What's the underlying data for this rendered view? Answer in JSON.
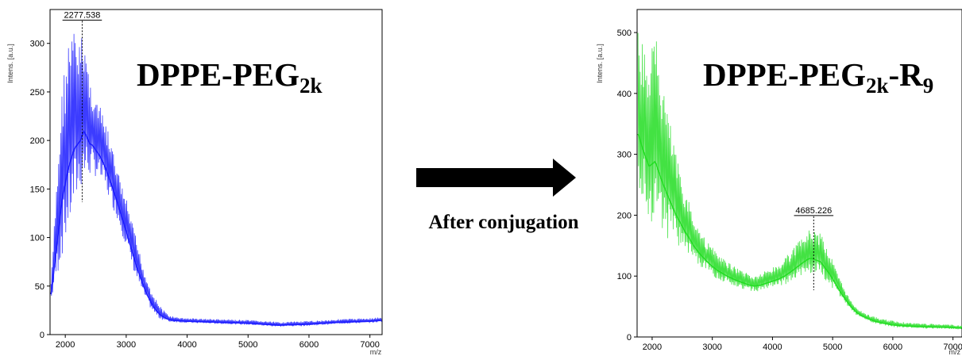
{
  "chart_data": [
    {
      "type": "line",
      "title_main": "DPPE-PEG",
      "title_sub": "2k",
      "title_suffix": "",
      "title_suffix_sub": "",
      "ylabel": "Intens. [a.u.]",
      "xlabel": "m/z",
      "xlim": [
        1750,
        7200
      ],
      "ylim": [
        0,
        330
      ],
      "xticks": [
        2000,
        3000,
        4000,
        5000,
        6000,
        7000
      ],
      "yticks": [
        0,
        50,
        100,
        150,
        200,
        250,
        300
      ],
      "peak_label": "2277.538",
      "peak_x": 2277.538,
      "peak_y": 315,
      "color": "#1a1aff",
      "grid": false,
      "series": [
        {
          "upper": [
            [
              1770,
              55
            ],
            [
              1850,
              150
            ],
            [
              1950,
              260
            ],
            [
              2050,
              305
            ],
            [
              2150,
              315
            ],
            [
              2250,
              300
            ],
            [
              2300,
              320
            ],
            [
              2400,
              265
            ],
            [
              2500,
              245
            ],
            [
              2600,
              230
            ],
            [
              2700,
              210
            ],
            [
              2800,
              185
            ],
            [
              2900,
              160
            ],
            [
              3000,
              140
            ],
            [
              3100,
              115
            ],
            [
              3200,
              90
            ],
            [
              3300,
              65
            ],
            [
              3400,
              48
            ],
            [
              3500,
              35
            ],
            [
              3600,
              26
            ],
            [
              3700,
              20
            ],
            [
              3800,
              18
            ],
            [
              4000,
              17
            ],
            [
              4500,
              16
            ],
            [
              5000,
              15
            ],
            [
              5500,
              13
            ],
            [
              6000,
              14
            ],
            [
              6500,
              16
            ],
            [
              7000,
              17
            ],
            [
              7200,
              18
            ]
          ],
          "lower": [
            [
              1770,
              35
            ],
            [
              1850,
              55
            ],
            [
              1950,
              80
            ],
            [
              2050,
              105
            ],
            [
              2150,
              130
            ],
            [
              2250,
              150
            ],
            [
              2350,
              160
            ],
            [
              2450,
              165
            ],
            [
              2550,
              160
            ],
            [
              2650,
              150
            ],
            [
              2750,
              135
            ],
            [
              2850,
              120
            ],
            [
              2950,
              100
            ],
            [
              3050,
              80
            ],
            [
              3150,
              60
            ],
            [
              3250,
              45
            ],
            [
              3350,
              32
            ],
            [
              3450,
              22
            ],
            [
              3550,
              16
            ],
            [
              3700,
              13
            ],
            [
              4000,
              12
            ],
            [
              4500,
              11
            ],
            [
              5000,
              10
            ],
            [
              5500,
              8
            ],
            [
              6000,
              9
            ],
            [
              6500,
              11
            ],
            [
              7000,
              12
            ],
            [
              7200,
              13
            ]
          ]
        }
      ]
    },
    {
      "type": "line",
      "title_main": "DPPE-PEG",
      "title_sub": "2k",
      "title_suffix": "-R",
      "title_suffix_sub": "9",
      "ylabel": "Intens. [a.u.]",
      "xlabel": "m/z",
      "xlim": [
        1750,
        7150
      ],
      "ylim": [
        0,
        530
      ],
      "xticks": [
        2000,
        3000,
        4000,
        5000,
        6000,
        7000
      ],
      "yticks": [
        0,
        100,
        200,
        300,
        400,
        500
      ],
      "peak_label": "4685.226",
      "peak_x": 4685.226,
      "peak_y": 185,
      "color": "#22dd22",
      "grid": false,
      "series": [
        {
          "upper": [
            [
              1770,
              500
            ],
            [
              1850,
              480
            ],
            [
              1950,
              450
            ],
            [
              2050,
              505
            ],
            [
              2150,
              440
            ],
            [
              2250,
              380
            ],
            [
              2400,
              300
            ],
            [
              2550,
              240
            ],
            [
              2700,
              195
            ],
            [
              2900,
              160
            ],
            [
              3100,
              135
            ],
            [
              3300,
              120
            ],
            [
              3500,
              110
            ],
            [
              3700,
              100
            ],
            [
              3900,
              110
            ],
            [
              4100,
              120
            ],
            [
              4300,
              140
            ],
            [
              4500,
              165
            ],
            [
              4650,
              180
            ],
            [
              4800,
              170
            ],
            [
              4950,
              140
            ],
            [
              5100,
              100
            ],
            [
              5300,
              60
            ],
            [
              5500,
              40
            ],
            [
              5800,
              30
            ],
            [
              6200,
              24
            ],
            [
              6600,
              22
            ],
            [
              7000,
              20
            ],
            [
              7150,
              19
            ]
          ],
          "lower": [
            [
              1770,
              250
            ],
            [
              1850,
              220
            ],
            [
              1950,
              195
            ],
            [
              2050,
              180
            ],
            [
              2200,
              165
            ],
            [
              2400,
              150
            ],
            [
              2600,
              135
            ],
            [
              2800,
              115
            ],
            [
              3000,
              100
            ],
            [
              3200,
              90
            ],
            [
              3400,
              82
            ],
            [
              3600,
              76
            ],
            [
              3800,
              75
            ],
            [
              4000,
              80
            ],
            [
              4200,
              85
            ],
            [
              4400,
              95
            ],
            [
              4600,
              105
            ],
            [
              4800,
              100
            ],
            [
              5000,
              80
            ],
            [
              5200,
              55
            ],
            [
              5400,
              35
            ],
            [
              5700,
              22
            ],
            [
              6000,
              16
            ],
            [
              6500,
              14
            ],
            [
              7000,
              13
            ],
            [
              7150,
              12
            ]
          ]
        }
      ]
    }
  ],
  "arrow_label": "After conjugation"
}
